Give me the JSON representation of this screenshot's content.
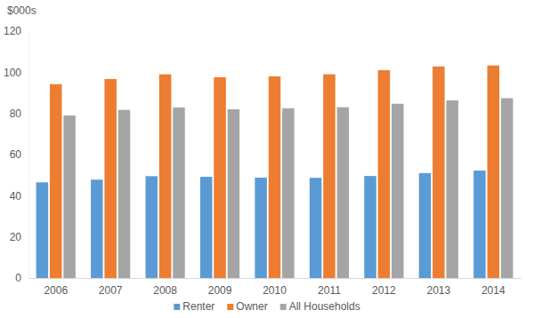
{
  "chart_data": {
    "type": "bar",
    "y_label": "$000s",
    "categories": [
      "2006",
      "2007",
      "2008",
      "2009",
      "2010",
      "2011",
      "2012",
      "2013",
      "2014"
    ],
    "series": [
      {
        "name": "Renter",
        "color": "#5b9bd5",
        "values": [
          46.5,
          47.8,
          49.5,
          49.2,
          48.8,
          48.7,
          49.6,
          51.0,
          52.2
        ]
      },
      {
        "name": "Owner",
        "color": "#ed7d31",
        "values": [
          94.2,
          96.7,
          99.0,
          97.6,
          98.0,
          99.0,
          101.0,
          102.8,
          103.3
        ]
      },
      {
        "name": "All Households",
        "color": "#a5a5a5",
        "values": [
          79.0,
          81.7,
          82.9,
          82.0,
          82.5,
          83.0,
          84.7,
          86.3,
          87.4
        ]
      }
    ],
    "ylim": [
      0,
      120
    ],
    "yticks": [
      0,
      20,
      40,
      60,
      80,
      100,
      120
    ],
    "grid": false,
    "legend": "bottom"
  }
}
